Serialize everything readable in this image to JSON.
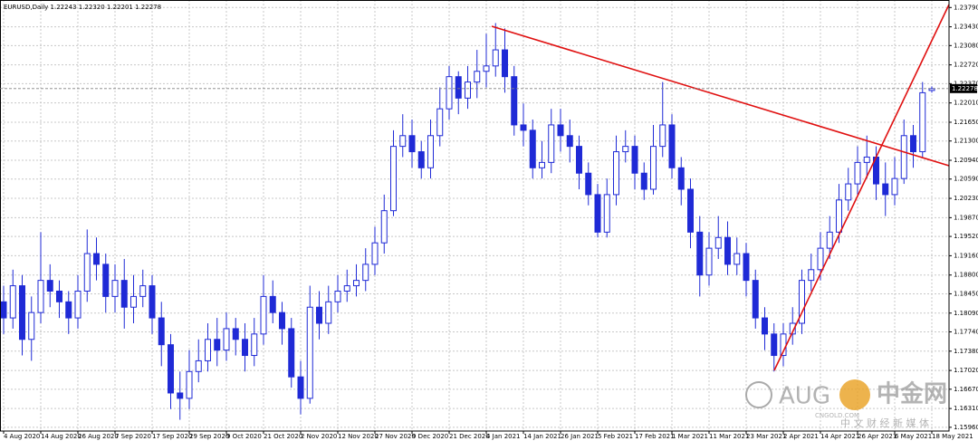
{
  "chart_data": {
    "type": "candlestick",
    "title": "EURUSD,Daily",
    "ohlc_labels": [
      "1.22243",
      "1.22320",
      "1.22201",
      "1.22278"
    ],
    "categories": [
      "4 Aug 2020",
      null,
      null,
      null,
      "14 Aug 2020",
      null,
      null,
      null,
      "26 Aug 2020",
      null,
      null,
      null,
      "7 Sep 2020",
      null,
      null,
      null,
      "17 Sep 2020",
      null,
      null,
      null,
      "29 Sep 2020",
      null,
      null,
      null,
      "9 Oct 2020",
      null,
      null,
      null,
      "21 Oct 2020",
      null,
      null,
      null,
      "2 Nov 2020",
      null,
      null,
      null,
      "12 Nov 2020",
      null,
      null,
      null,
      "27 Nov 2020",
      null,
      null,
      null,
      "9 Dec 2020",
      null,
      null,
      null,
      "21 Dec 2020",
      null,
      null,
      null,
      "4 Jan 2021",
      null,
      null,
      null,
      "14 Jan 2021",
      null,
      null,
      null,
      "26 Jan 2021",
      null,
      null,
      null,
      "5 Feb 2021",
      null,
      null,
      null,
      "17 Feb 2021",
      null,
      null,
      null,
      "1 Mar 2021",
      null,
      null,
      null,
      "11 Mar 2021",
      null,
      null,
      null,
      "23 Mar 2021",
      null,
      null,
      null,
      "2 Apr 2021",
      null,
      null,
      null,
      "14 Apr 2021",
      null,
      null,
      null,
      "26 Apr 2021",
      null,
      null,
      null,
      "6 May 2021",
      null,
      null,
      null,
      "18 May 2021"
    ],
    "open": [
      1.183,
      1.18,
      1.186,
      1.176,
      1.181,
      1.187,
      1.185,
      1.183,
      1.18,
      1.185,
      1.192,
      1.19,
      1.184,
      1.187,
      1.182,
      1.184,
      1.186,
      1.18,
      1.175,
      1.166,
      1.165,
      1.17,
      1.172,
      1.176,
      1.174,
      1.178,
      1.176,
      1.173,
      1.177,
      1.184,
      1.181,
      1.178,
      1.169,
      1.165,
      1.182,
      1.179,
      1.183,
      1.185,
      1.186,
      1.187,
      1.19,
      1.194,
      1.2,
      1.212,
      1.214,
      1.211,
      1.208,
      1.214,
      1.219,
      1.225,
      1.221,
      1.224,
      1.226,
      1.227,
      1.23,
      1.225,
      1.216,
      1.215,
      1.208,
      1.209,
      1.216,
      1.214,
      1.212,
      1.207,
      1.203,
      1.196,
      1.203,
      1.211,
      1.212,
      1.207,
      1.204,
      1.212,
      1.216,
      1.208,
      1.204,
      1.196,
      1.188,
      1.193,
      1.195,
      1.19,
      1.192,
      1.187,
      1.18,
      1.177,
      1.173,
      1.177,
      1.179,
      1.187,
      1.189,
      1.193,
      1.196,
      1.202,
      1.205,
      1.209,
      1.21,
      1.205,
      1.203,
      1.206,
      1.214,
      1.211,
      1.22243
    ],
    "high": [
      1.186,
      1.189,
      1.188,
      1.184,
      1.196,
      1.19,
      1.187,
      1.185,
      1.188,
      1.1965,
      1.195,
      1.192,
      1.19,
      1.191,
      1.188,
      1.189,
      1.188,
      1.183,
      1.177,
      1.17,
      1.174,
      1.176,
      1.179,
      1.18,
      1.181,
      1.18,
      1.179,
      1.18,
      1.188,
      1.187,
      1.183,
      1.18,
      1.172,
      1.186,
      1.185,
      1.186,
      1.188,
      1.189,
      1.19,
      1.193,
      1.197,
      1.203,
      1.215,
      1.218,
      1.217,
      1.213,
      1.217,
      1.223,
      1.227,
      1.226,
      1.227,
      1.23,
      1.233,
      1.235,
      1.234,
      1.227,
      1.22,
      1.217,
      1.213,
      1.219,
      1.219,
      1.217,
      1.214,
      1.209,
      1.205,
      1.206,
      1.214,
      1.215,
      1.214,
      1.209,
      1.216,
      1.224,
      1.218,
      1.21,
      1.206,
      1.199,
      1.196,
      1.199,
      1.198,
      1.195,
      1.194,
      1.189,
      1.182,
      1.179,
      1.179,
      1.182,
      1.189,
      1.192,
      1.196,
      1.199,
      1.205,
      1.208,
      1.212,
      1.214,
      1.212,
      1.209,
      1.21,
      1.217,
      1.216,
      1.224,
      1.2232
    ],
    "low": [
      1.177,
      1.178,
      1.173,
      1.172,
      1.179,
      1.182,
      1.18,
      1.177,
      1.178,
      1.183,
      1.187,
      1.181,
      1.181,
      1.178,
      1.179,
      1.182,
      1.177,
      1.171,
      1.163,
      1.161,
      1.163,
      1.168,
      1.17,
      1.171,
      1.172,
      1.173,
      1.17,
      1.171,
      1.175,
      1.179,
      1.175,
      1.167,
      1.162,
      1.164,
      1.176,
      1.177,
      1.181,
      1.183,
      1.184,
      1.185,
      1.188,
      1.192,
      1.199,
      1.21,
      1.208,
      1.206,
      1.206,
      1.212,
      1.217,
      1.218,
      1.219,
      1.221,
      1.223,
      1.225,
      1.222,
      1.214,
      1.212,
      1.206,
      1.206,
      1.207,
      1.211,
      1.209,
      1.204,
      1.201,
      1.195,
      1.195,
      1.201,
      1.209,
      1.204,
      1.202,
      1.203,
      1.21,
      1.206,
      1.201,
      1.193,
      1.184,
      1.186,
      1.191,
      1.188,
      1.188,
      1.184,
      1.178,
      1.174,
      1.17,
      1.171,
      1.175,
      1.177,
      1.185,
      1.187,
      1.191,
      1.194,
      1.2,
      1.203,
      1.206,
      1.202,
      1.199,
      1.201,
      1.205,
      1.208,
      1.21,
      1.22201
    ],
    "close": [
      1.18,
      1.186,
      1.176,
      1.181,
      1.187,
      1.185,
      1.183,
      1.18,
      1.185,
      1.192,
      1.19,
      1.184,
      1.187,
      1.182,
      1.184,
      1.186,
      1.18,
      1.175,
      1.166,
      1.165,
      1.17,
      1.172,
      1.176,
      1.174,
      1.178,
      1.176,
      1.173,
      1.177,
      1.184,
      1.181,
      1.178,
      1.169,
      1.165,
      1.182,
      1.179,
      1.183,
      1.185,
      1.186,
      1.187,
      1.19,
      1.194,
      1.2,
      1.212,
      1.214,
      1.211,
      1.208,
      1.214,
      1.219,
      1.225,
      1.221,
      1.224,
      1.226,
      1.227,
      1.23,
      1.225,
      1.216,
      1.215,
      1.208,
      1.209,
      1.216,
      1.214,
      1.212,
      1.207,
      1.203,
      1.196,
      1.203,
      1.211,
      1.212,
      1.207,
      1.204,
      1.212,
      1.216,
      1.208,
      1.204,
      1.196,
      1.188,
      1.193,
      1.195,
      1.19,
      1.192,
      1.187,
      1.18,
      1.177,
      1.173,
      1.177,
      1.179,
      1.187,
      1.189,
      1.193,
      1.196,
      1.202,
      1.205,
      1.209,
      1.21,
      1.205,
      1.203,
      1.206,
      1.214,
      1.211,
      1.222,
      1.22278
    ],
    "up_color": "#ffffff",
    "down_color": "#1f2ad6",
    "outline_color": "#1f2ad6",
    "ylim": [
      1.1589,
      1.2393
    ],
    "yticks": [
      {
        "value": 1.2379,
        "label": "1.23790"
      },
      {
        "value": 1.2343,
        "label": "1.23430"
      },
      {
        "value": 1.2308,
        "label": "1.23080"
      },
      {
        "value": 1.2272,
        "label": "1.22720"
      },
      {
        "value": 1.2237,
        "label": "1.22370"
      },
      {
        "value": 1.2201,
        "label": "1.22010"
      },
      {
        "value": 1.2165,
        "label": "1.21650"
      },
      {
        "value": 1.213,
        "label": "1.21300"
      },
      {
        "value": 1.2094,
        "label": "1.20940"
      },
      {
        "value": 1.2059,
        "label": "1.20590"
      },
      {
        "value": 1.2023,
        "label": "1.20230"
      },
      {
        "value": 1.1987,
        "label": "1.19870"
      },
      {
        "value": 1.1952,
        "label": "1.19520"
      },
      {
        "value": 1.1916,
        "label": "1.19160"
      },
      {
        "value": 1.188,
        "label": "1.18800"
      },
      {
        "value": 1.1845,
        "label": "1.18450"
      },
      {
        "value": 1.1809,
        "label": "1.18090"
      },
      {
        "value": 1.1774,
        "label": "1.17740"
      },
      {
        "value": 1.1738,
        "label": "1.17380"
      },
      {
        "value": 1.1702,
        "label": "1.17020"
      },
      {
        "value": 1.1667,
        "label": "1.16670"
      },
      {
        "value": 1.1631,
        "label": "1.16310"
      },
      {
        "value": 1.1596,
        "label": "1.15960"
      }
    ],
    "grid": true
  },
  "watermark": {
    "brand": "AUG",
    "logo": "中金网",
    "site": "CNGOLD.COM",
    "tagline": "中 文 财 经 新 媒 体"
  }
}
